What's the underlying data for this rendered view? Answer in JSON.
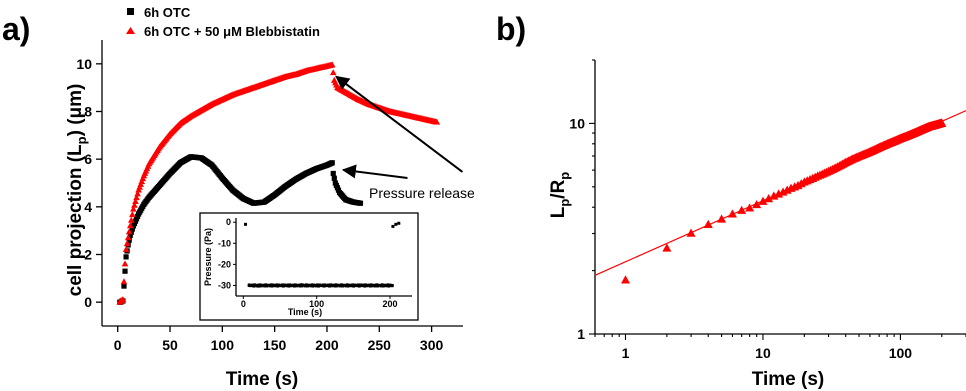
{
  "chart_data": [
    {
      "panel": "a)",
      "type": "scatter",
      "title": "",
      "xlabel": "Time (s)",
      "ylabel": "cell projection (L",
      "ylabel_sub": "p",
      "ylabel_tail": ") (μm)",
      "xlim": [
        -15,
        330
      ],
      "ylim": [
        -1,
        11
      ],
      "xticks": [
        0,
        50,
        100,
        150,
        200,
        250,
        300
      ],
      "yticks": [
        0,
        2,
        4,
        6,
        8,
        10
      ],
      "grid": false,
      "legend_position": "top-left",
      "colors": {
        "series_1": "#000000",
        "series_2": "#ff0000"
      },
      "series": [
        {
          "name": "6h OTC",
          "marker": "square",
          "color": "#000000",
          "points": [
            [
              2,
              0
            ],
            [
              3,
              0
            ],
            [
              4,
              0.05
            ],
            [
              5,
              0.05
            ],
            [
              7,
              1.3
            ],
            [
              8,
              1.9
            ],
            [
              10,
              2.4
            ],
            [
              12,
              2.8
            ],
            [
              15,
              3.2
            ],
            [
              20,
              3.7
            ],
            [
              25,
              4.1
            ],
            [
              30,
              4.4
            ],
            [
              40,
              4.9
            ],
            [
              50,
              5.4
            ],
            [
              60,
              5.85
            ],
            [
              70,
              6.1
            ],
            [
              80,
              6.05
            ],
            [
              90,
              5.75
            ],
            [
              100,
              5.2
            ],
            [
              110,
              4.7
            ],
            [
              120,
              4.35
            ],
            [
              130,
              4.15
            ],
            [
              140,
              4.2
            ],
            [
              150,
              4.5
            ],
            [
              160,
              4.85
            ],
            [
              170,
              5.15
            ],
            [
              180,
              5.4
            ],
            [
              190,
              5.6
            ],
            [
              200,
              5.75
            ],
            [
              205,
              5.85
            ],
            [
              206,
              5.4
            ],
            [
              208,
              5.0
            ],
            [
              212,
              4.6
            ],
            [
              218,
              4.3
            ],
            [
              225,
              4.2
            ],
            [
              232,
              4.15
            ]
          ]
        },
        {
          "name": "6h OTC + 50 μM Blebbistatin",
          "marker": "triangle",
          "color": "#ff0000",
          "points": [
            [
              2,
              0
            ],
            [
              3,
              0.05
            ],
            [
              5,
              0.1
            ],
            [
              7,
              1.6
            ],
            [
              8,
              2.2
            ],
            [
              10,
              2.7
            ],
            [
              12,
              3.2
            ],
            [
              15,
              3.9
            ],
            [
              20,
              4.7
            ],
            [
              25,
              5.3
            ],
            [
              30,
              5.8
            ],
            [
              40,
              6.5
            ],
            [
              50,
              7.05
            ],
            [
              60,
              7.5
            ],
            [
              70,
              7.8
            ],
            [
              80,
              8.05
            ],
            [
              90,
              8.3
            ],
            [
              100,
              8.5
            ],
            [
              110,
              8.7
            ],
            [
              120,
              8.85
            ],
            [
              130,
              9.0
            ],
            [
              140,
              9.15
            ],
            [
              150,
              9.3
            ],
            [
              160,
              9.45
            ],
            [
              170,
              9.55
            ],
            [
              180,
              9.7
            ],
            [
              190,
              9.8
            ],
            [
              200,
              9.9
            ],
            [
              205,
              9.95
            ],
            [
              207,
              9.3
            ],
            [
              210,
              9.0
            ],
            [
              220,
              8.75
            ],
            [
              230,
              8.5
            ],
            [
              240,
              8.3
            ],
            [
              250,
              8.15
            ],
            [
              260,
              8.0
            ],
            [
              270,
              7.9
            ],
            [
              280,
              7.8
            ],
            [
              290,
              7.7
            ],
            [
              300,
              7.6
            ],
            [
              305,
              7.55
            ]
          ]
        }
      ],
      "annotations": [
        {
          "text": "Pressure release",
          "xy": [
            205,
            9.8
          ],
          "xy2": [
            206,
            5.55
          ],
          "text_at": [
            232,
            4.75
          ]
        }
      ],
      "inset": {
        "type": "scatter",
        "xlabel": "Time (s)",
        "ylabel": "Pressure (Pa)",
        "xlim": [
          -10,
          230
        ],
        "ylim": [
          -35,
          2
        ],
        "xticks": [
          0,
          100,
          200
        ],
        "yticks": [
          0,
          -10,
          -20,
          -30
        ],
        "series": [
          {
            "name": "",
            "color": "#000000",
            "points": [
              [
                3,
                -1
              ],
              [
                8,
                -30
              ],
              [
                20,
                -30.3
              ],
              [
                40,
                -29.8
              ],
              [
                60,
                -30.1
              ],
              [
                80,
                -29.7
              ],
              [
                100,
                -30.2
              ],
              [
                120,
                -29.9
              ],
              [
                140,
                -30.1
              ],
              [
                160,
                -29.8
              ],
              [
                180,
                -30.2
              ],
              [
                195,
                -30
              ],
              [
                203,
                -30
              ],
              [
                204,
                -2
              ],
              [
                208,
                -1
              ],
              [
                212,
                -0.5
              ]
            ]
          }
        ]
      }
    },
    {
      "panel": "b)",
      "type": "scatter",
      "title": "",
      "xlabel": "Time (s)",
      "ylabel": "L",
      "ylabel_sub": "p",
      "ylabel_mid": "/R",
      "ylabel_sub2": "p",
      "x_scale": "log",
      "y_scale": "log",
      "xlim": [
        0.6,
        300
      ],
      "ylim": [
        1,
        20
      ],
      "xticks": [
        1,
        10,
        100
      ],
      "yticks": [
        1,
        10
      ],
      "grid": false,
      "colors": {
        "series_1": "#ff0000",
        "fit": "#ff0000"
      },
      "series": [
        {
          "name": "",
          "marker": "triangle",
          "color": "#ff0000",
          "points": [
            [
              1,
              1.8
            ],
            [
              2,
              2.55
            ],
            [
              3,
              3.0
            ],
            [
              4,
              3.3
            ],
            [
              5,
              3.5
            ],
            [
              6,
              3.7
            ],
            [
              7,
              3.85
            ],
            [
              8,
              3.95
            ],
            [
              9,
              4.1
            ],
            [
              10,
              4.25
            ],
            [
              12,
              4.5
            ],
            [
              14,
              4.7
            ],
            [
              16,
              4.9
            ],
            [
              18,
              5.05
            ],
            [
              20,
              5.25
            ],
            [
              25,
              5.6
            ],
            [
              30,
              5.9
            ],
            [
              35,
              6.2
            ],
            [
              40,
              6.5
            ],
            [
              45,
              6.75
            ],
            [
              50,
              6.95
            ],
            [
              60,
              7.3
            ],
            [
              70,
              7.65
            ],
            [
              80,
              7.95
            ],
            [
              90,
              8.2
            ],
            [
              100,
              8.45
            ],
            [
              120,
              8.85
            ],
            [
              140,
              9.25
            ],
            [
              160,
              9.6
            ],
            [
              180,
              9.8
            ],
            [
              200,
              10.0
            ]
          ]
        }
      ],
      "fit_line": {
        "x": [
          0.6,
          300
        ],
        "y": [
          1.9,
          11.5
        ]
      }
    }
  ]
}
